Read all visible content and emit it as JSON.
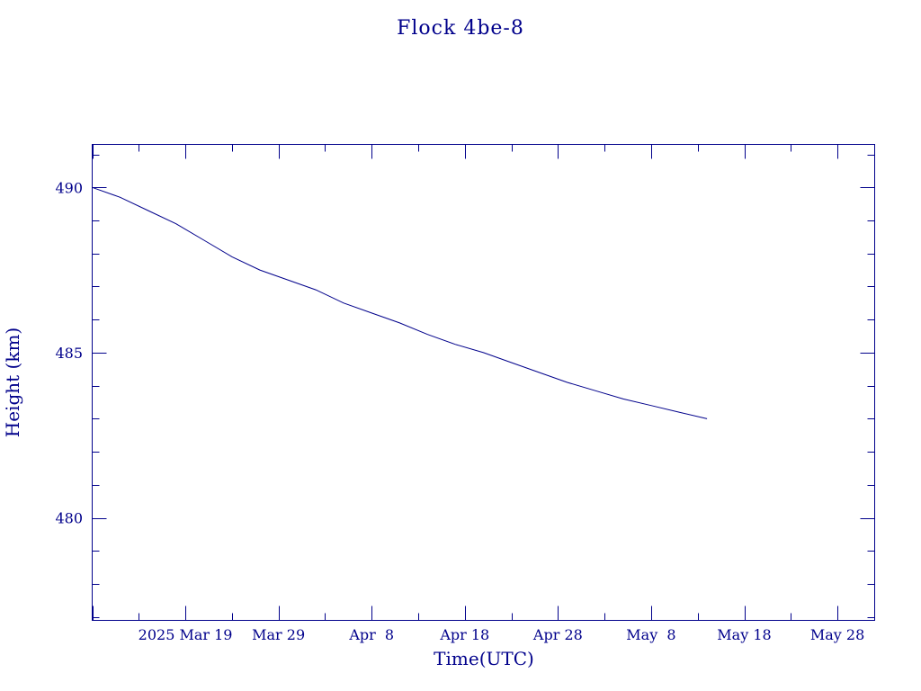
{
  "chart_data": {
    "type": "line",
    "title": "Flock 4be-8",
    "xlabel": "Time(UTC)",
    "ylabel": "Height (km)",
    "xlim": [
      "2025-03-09",
      "2025-06-01"
    ],
    "ylim": [
      476.9,
      491.3
    ],
    "grid": false,
    "x_ticks": [
      {
        "date": "2025-03-19",
        "label": "2025 Mar 19"
      },
      {
        "date": "2025-03-29",
        "label": "Mar 29"
      },
      {
        "date": "2025-04-08",
        "label": "Apr  8"
      },
      {
        "date": "2025-04-18",
        "label": "Apr 18"
      },
      {
        "date": "2025-04-28",
        "label": "Apr 28"
      },
      {
        "date": "2025-05-08",
        "label": "May  8"
      },
      {
        "date": "2025-05-18",
        "label": "May 18"
      },
      {
        "date": "2025-05-28",
        "label": "May 28"
      }
    ],
    "y_ticks": [
      480,
      485,
      490
    ],
    "series": [
      {
        "x": [
          "2025-03-09",
          "2025-03-12",
          "2025-03-15",
          "2025-03-18",
          "2025-03-21",
          "2025-03-24",
          "2025-03-27",
          "2025-03-30",
          "2025-04-02",
          "2025-04-05",
          "2025-04-08",
          "2025-04-11",
          "2025-04-14",
          "2025-04-17",
          "2025-04-20",
          "2025-04-23",
          "2025-04-26",
          "2025-04-29",
          "2025-05-02",
          "2025-05-05",
          "2025-05-08",
          "2025-05-11",
          "2025-05-14"
        ],
        "y": [
          490.0,
          489.7,
          489.3,
          488.9,
          488.4,
          487.9,
          487.5,
          487.2,
          486.9,
          486.5,
          486.2,
          485.9,
          485.55,
          485.25,
          485.0,
          484.7,
          484.4,
          484.1,
          483.85,
          483.6,
          483.4,
          483.2,
          483.0
        ]
      }
    ]
  }
}
